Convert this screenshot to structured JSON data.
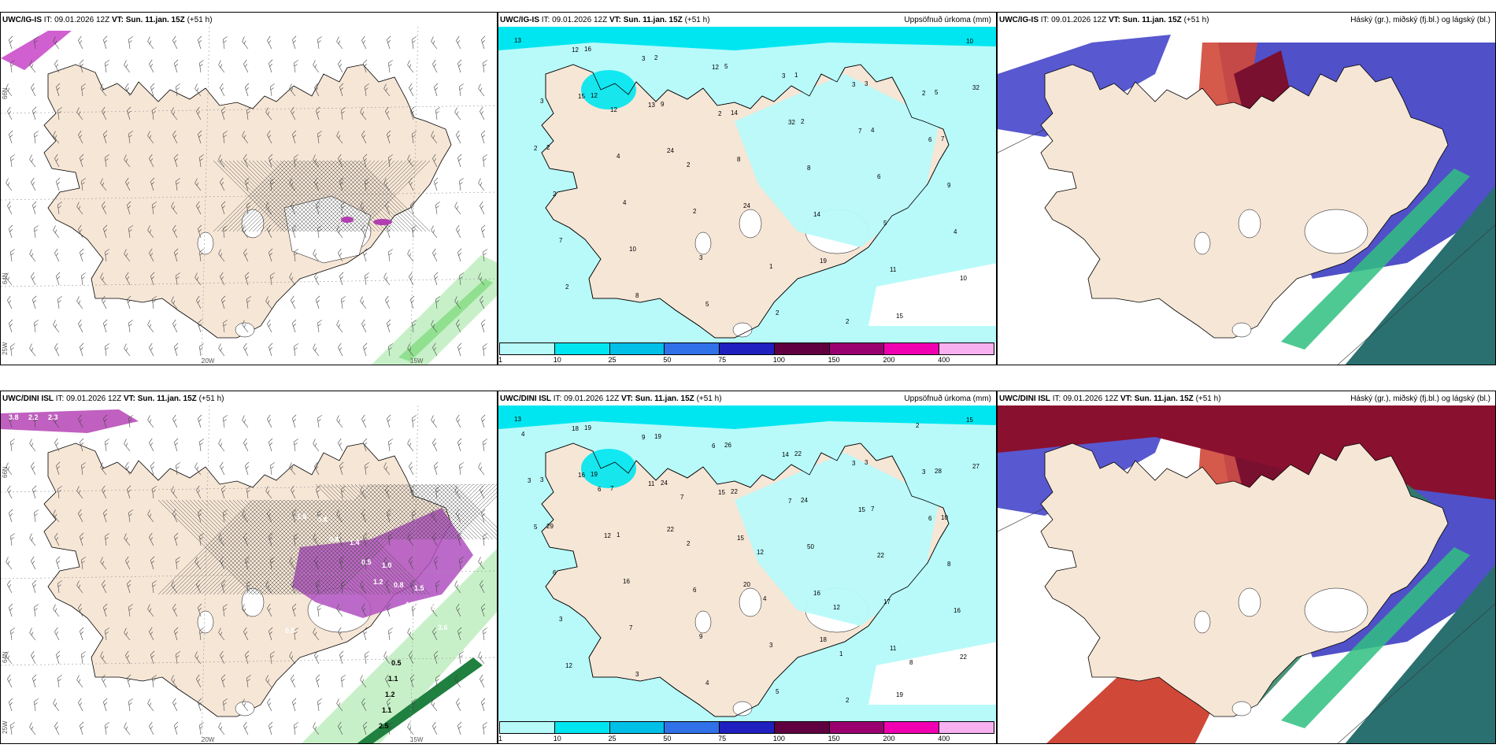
{
  "panels": [
    {
      "model": "UWC/IG-IS",
      "it": "IT: 09.01.2026 12Z",
      "vt_label": "VT:",
      "vt": "Sun. 11.jan. 15Z",
      "lead": "(+51 h)",
      "right_title": "",
      "kind": "wind",
      "lon_labels": [
        "20W",
        "15W"
      ],
      "lat_labels": [
        "66N",
        "64N",
        "25W"
      ]
    },
    {
      "model": "UWC/IG-IS",
      "it": "IT: 09.01.2026 12Z",
      "vt_label": "VT:",
      "vt": "Sun. 11.jan. 15Z",
      "lead": "(+51 h)",
      "right_title": "Uppsöfnuð úrkoma (mm)",
      "kind": "precip",
      "numbers": [
        "13",
        "12",
        "24",
        "24",
        "19",
        "15",
        "32",
        "16",
        "9",
        "8",
        "14",
        "11",
        "10",
        "15",
        "2",
        "14",
        "8",
        "5",
        "10",
        "12",
        "13",
        "5",
        "2",
        "6",
        "4",
        "2",
        "3",
        "2",
        "1",
        "4",
        "9",
        "7",
        "8",
        "12",
        "32",
        "3",
        "7",
        "2",
        "10",
        "5",
        "3",
        "7",
        "5",
        "2",
        "4",
        "3",
        "2",
        "3",
        "6",
        "3",
        "4",
        "2",
        "1",
        "2",
        "2",
        "2",
        "12",
        "2"
      ]
    },
    {
      "model": "UWC/IG-IS",
      "it": "IT: 09.01.2026 12Z",
      "vt_label": "VT:",
      "vt": "Sun. 11.jan. 15Z",
      "lead": "(+51 h)",
      "right_title": "Háský (gr.), miðský (fj.bl.) og lágský (bl.)",
      "kind": "cloud"
    },
    {
      "model": "UWC/DINI ISL",
      "it": "IT: 09.01.2026 12Z",
      "vt_label": "VT:",
      "vt": "Sun. 11.jan. 15Z",
      "lead": "(+51 h)",
      "right_title": "",
      "kind": "wind2",
      "lon_labels": [
        "20W",
        "15W"
      ],
      "lat_labels": [
        "66N",
        "64N",
        "25W"
      ],
      "values": [
        "3.8",
        "2.2",
        "2.3",
        "1.2",
        "1.4",
        "3.6",
        "1.8",
        "0.4",
        "0.5",
        "0.8",
        "1.0",
        "0.5",
        "0.4",
        "1.4",
        "1.0",
        "1.5",
        "0.5",
        "1.1",
        "1.2",
        "1.1",
        "2.5"
      ]
    },
    {
      "model": "UWC/DINI ISL",
      "it": "IT: 09.01.2026 12Z",
      "vt_label": "VT:",
      "vt": "Sun. 11.jan. 15Z",
      "lead": "(+51 h)",
      "right_title": "Uppsöfnuð úrkoma (mm)",
      "kind": "precip2",
      "numbers": [
        "13",
        "19",
        "22",
        "20",
        "18",
        "19",
        "27",
        "19",
        "24",
        "15",
        "16",
        "11",
        "15",
        "16",
        "19",
        "22",
        "50",
        "17",
        "22",
        "18",
        "11",
        "26",
        "24",
        "22",
        "16",
        "12",
        "9",
        "15",
        "22",
        "7",
        "8",
        "3",
        "3",
        "6",
        "7",
        "3",
        "10",
        "6",
        "7",
        "4",
        "14",
        "15",
        "28",
        "29",
        "16",
        "9",
        "5",
        "3",
        "6",
        "3",
        "1",
        "6",
        "3",
        "2",
        "3",
        "5",
        "7",
        "2",
        "4",
        "1",
        "2",
        "3",
        "12",
        "7",
        "12",
        "12",
        "8",
        "4",
        "6"
      ]
    },
    {
      "model": "UWC/DINI ISL",
      "it": "IT: 09.01.2026 12Z",
      "vt_label": "VT:",
      "vt": "Sun. 11.jan. 15Z",
      "lead": "(+51 h)",
      "right_title": "Háský (gr.), miðský (fj.bl.) og lágský (bl.)",
      "kind": "cloud2"
    }
  ],
  "colorbar": {
    "ticks": [
      "1",
      "10",
      "25",
      "50",
      "75",
      "100",
      "150",
      "200",
      "400"
    ],
    "colors": [
      "#b8fafa",
      "#00e6f0",
      "#00c0e8",
      "#3070e8",
      "#2020c0",
      "#600040",
      "#9a0070",
      "#f000b0",
      "#f8b0f0"
    ]
  },
  "colors": {
    "land": "#f6e6d6",
    "ocean": "#ffffff",
    "precip_light": "#b8fafa",
    "precip_mid": "#00e6f0"
  }
}
